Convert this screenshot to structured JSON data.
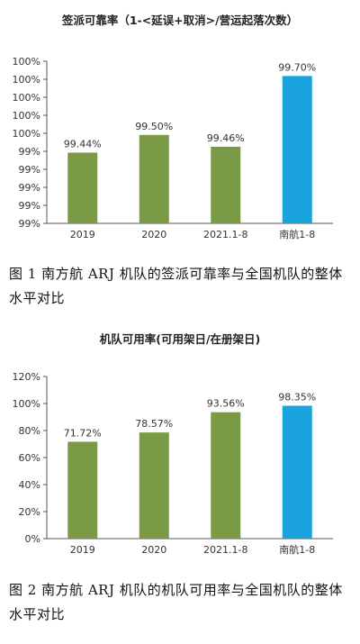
{
  "figure1": {
    "caption": "图 1  南方航 ARJ 机队的签派可靠率与全国机队的整体水平对比",
    "chart_data": {
      "type": "bar",
      "title": "签派可靠率（1-<延误+取消>/营运起落次数）",
      "categories": [
        "2019",
        "2020",
        "2021.1-8",
        "南航1-8"
      ],
      "values": [
        99.44,
        99.5,
        99.46,
        99.7
      ],
      "data_labels": [
        "99.44%",
        "99.50%",
        "99.46%",
        "99.70%"
      ],
      "bar_colors": [
        "#7a9a45",
        "#7a9a45",
        "#7a9a45",
        "#1aa3dc"
      ],
      "yticks": [
        "99%",
        "99%",
        "99%",
        "99%",
        "99%",
        "100%",
        "100%",
        "100%",
        "100%",
        "100%"
      ],
      "ylim": [
        99.2,
        99.75
      ],
      "grid": false,
      "xlabel": "",
      "ylabel": ""
    }
  },
  "figure2": {
    "caption": "图 2  南方航 ARJ 机队的机队可用率与全国机队的整体水平对比",
    "chart_data": {
      "type": "bar",
      "title": "机队可用率(可用架日/在册架日)",
      "categories": [
        "2019",
        "2020",
        "2021.1-8",
        "南航1-8"
      ],
      "values": [
        71.72,
        78.57,
        93.56,
        98.35
      ],
      "data_labels": [
        "71.72%",
        "78.57%",
        "93.56%",
        "98.35%"
      ],
      "bar_colors": [
        "#7a9a45",
        "#7a9a45",
        "#7a9a45",
        "#1aa3dc"
      ],
      "yticks": [
        "0%",
        "20%",
        "40%",
        "60%",
        "80%",
        "100%",
        "120%"
      ],
      "ylim": [
        0,
        120
      ],
      "grid": false,
      "xlabel": "",
      "ylabel": ""
    }
  }
}
